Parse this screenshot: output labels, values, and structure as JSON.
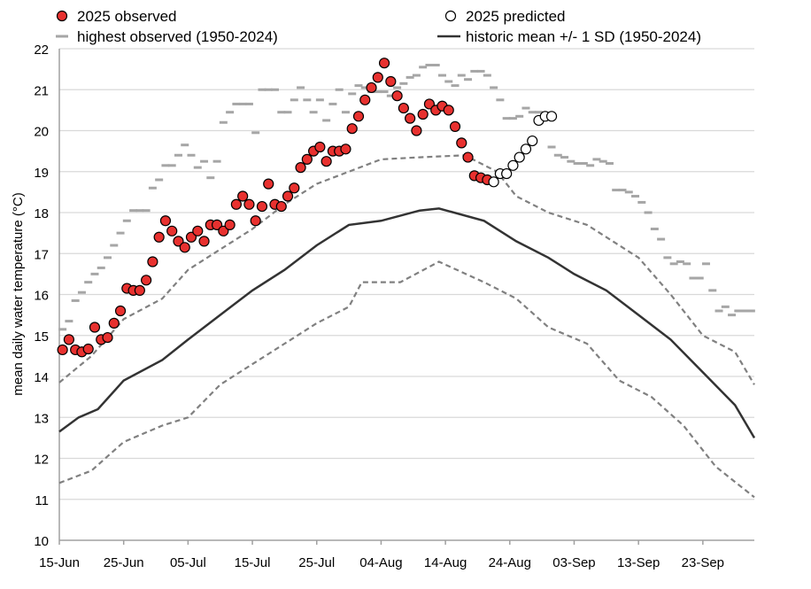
{
  "chart_data": {
    "type": "line",
    "title": "",
    "xlabel": "",
    "ylabel": "mean daily water temperature (°C)",
    "ylim": [
      10,
      22
    ],
    "xlim": [
      "15-Jun",
      "01-Oct"
    ],
    "grid": "horizontal",
    "legend_position": "top",
    "x_tick_labels": [
      "15-Jun",
      "25-Jun",
      "05-Jul",
      "15-Jul",
      "25-Jul",
      "04-Aug",
      "14-Aug",
      "24-Aug",
      "03-Sep",
      "13-Sep",
      "23-Sep"
    ],
    "y_tick_labels": [
      "10",
      "11",
      "12",
      "13",
      "14",
      "15",
      "16",
      "17",
      "18",
      "19",
      "20",
      "21",
      "22"
    ],
    "legend": {
      "observed": "2025 observed",
      "predicted": "2025 predicted",
      "highest": "highest observed (1950-2024)",
      "mean": "historic mean +/- 1 SD (1950-2024)"
    },
    "colors": {
      "observed": "#e8312f",
      "highest": "#a6a6a6",
      "mean": "#333333",
      "sd": "#808080",
      "grid": "#d9d9d9"
    },
    "observed_2025": {
      "start": "15-Jun",
      "values": [
        14.65,
        14.9,
        14.65,
        14.6,
        14.67,
        15.2,
        14.9,
        14.95,
        15.3,
        15.6,
        16.15,
        16.1,
        16.1,
        16.35,
        16.8,
        17.4,
        17.8,
        17.55,
        17.3,
        17.15,
        17.4,
        17.55,
        17.3,
        17.7,
        17.7,
        17.55,
        17.7,
        18.2,
        18.4,
        18.2,
        17.8,
        18.15,
        18.7,
        18.2,
        18.15,
        18.4,
        18.6,
        19.1,
        19.3,
        19.5,
        19.6,
        19.25,
        19.5,
        19.5,
        19.55,
        20.05,
        20.35,
        20.75,
        21.05,
        21.3,
        21.65,
        21.2,
        20.85,
        20.55,
        20.3,
        20.0,
        20.4,
        20.65,
        20.5,
        20.6,
        20.5,
        20.1,
        19.7,
        19.35,
        18.9,
        18.85,
        18.8
      ]
    },
    "predicted_2025": {
      "start": "21-Aug",
      "values": [
        18.75,
        18.95,
        18.95,
        19.15,
        19.35,
        19.55,
        19.75,
        20.25,
        20.35,
        20.35
      ]
    },
    "highest_observed": {
      "start": "15-Jun",
      "values": [
        15.15,
        15.35,
        15.85,
        16.05,
        16.3,
        16.5,
        16.65,
        16.9,
        17.2,
        17.5,
        17.8,
        18.05,
        18.05,
        18.05,
        18.6,
        18.8,
        19.15,
        19.15,
        19.4,
        19.65,
        19.4,
        19.1,
        19.25,
        18.85,
        19.25,
        20.2,
        20.45,
        20.65,
        20.65,
        20.65,
        19.95,
        21.0,
        21.0,
        21.0,
        20.45,
        20.45,
        20.75,
        21.05,
        20.75,
        20.45,
        20.75,
        20.25,
        20.65,
        21.0,
        20.45,
        20.9,
        21.1,
        21.05,
        20.95,
        20.95,
        20.95,
        20.85,
        21.05,
        21.15,
        21.3,
        21.35,
        21.55,
        21.6,
        21.6,
        21.35,
        21.2,
        21.1,
        21.35,
        21.25,
        21.45,
        21.45,
        21.35,
        21.05,
        20.75,
        20.3,
        20.3,
        20.35,
        20.55,
        20.45,
        20.45,
        20.4,
        19.6,
        19.4,
        19.35,
        19.25,
        19.2,
        19.2,
        19.15,
        19.3,
        19.25,
        19.2,
        18.55,
        18.55,
        18.5,
        18.4,
        18.25,
        18.0,
        17.6,
        17.35,
        16.9,
        16.75,
        16.8,
        16.75,
        16.4,
        16.4,
        16.75,
        16.1,
        15.6,
        15.7,
        15.5,
        15.6,
        15.6,
        15.6
      ]
    },
    "historic_mean": [
      [
        "15-Jun",
        12.65
      ],
      [
        "18-Jun",
        13.0
      ],
      [
        "21-Jun",
        13.2
      ],
      [
        "25-Jun",
        13.9
      ],
      [
        "01-Jul",
        14.4
      ],
      [
        "05-Jul",
        14.9
      ],
      [
        "10-Jul",
        15.5
      ],
      [
        "15-Jul",
        16.1
      ],
      [
        "20-Jul",
        16.6
      ],
      [
        "25-Jul",
        17.2
      ],
      [
        "30-Jul",
        17.7
      ],
      [
        "04-Aug",
        17.8
      ],
      [
        "10-Aug",
        18.05
      ],
      [
        "13-Aug",
        18.1
      ],
      [
        "20-Aug",
        17.8
      ],
      [
        "25-Aug",
        17.3
      ],
      [
        "30-Aug",
        16.9
      ],
      [
        "03-Sep",
        16.5
      ],
      [
        "08-Sep",
        16.1
      ],
      [
        "13-Sep",
        15.5
      ],
      [
        "18-Sep",
        14.9
      ],
      [
        "23-Sep",
        14.1
      ],
      [
        "28-Sep",
        13.3
      ],
      [
        "01-Oct",
        12.5
      ]
    ],
    "mean_plus_1sd": [
      [
        "15-Jun",
        13.85
      ],
      [
        "20-Jun",
        14.5
      ],
      [
        "25-Jun",
        15.4
      ],
      [
        "01-Jul",
        15.9
      ],
      [
        "05-Jul",
        16.6
      ],
      [
        "10-Jul",
        17.1
      ],
      [
        "15-Jul",
        17.6
      ],
      [
        "20-Jul",
        18.2
      ],
      [
        "25-Jul",
        18.7
      ],
      [
        "30-Jul",
        19.0
      ],
      [
        "04-Aug",
        19.3
      ],
      [
        "10-Aug",
        19.35
      ],
      [
        "17-Aug",
        19.4
      ],
      [
        "22-Aug",
        19.0
      ],
      [
        "25-Aug",
        18.4
      ],
      [
        "30-Aug",
        18.0
      ],
      [
        "05-Sep",
        17.7
      ],
      [
        "10-Sep",
        17.2
      ],
      [
        "13-Sep",
        16.9
      ],
      [
        "18-Sep",
        16.0
      ],
      [
        "23-Sep",
        15.0
      ],
      [
        "28-Sep",
        14.6
      ],
      [
        "01-Oct",
        13.8
      ]
    ],
    "mean_minus_1sd": [
      [
        "15-Jun",
        11.4
      ],
      [
        "20-Jun",
        11.7
      ],
      [
        "25-Jun",
        12.4
      ],
      [
        "01-Jul",
        12.8
      ],
      [
        "05-Jul",
        13.0
      ],
      [
        "10-Jul",
        13.8
      ],
      [
        "15-Jul",
        14.3
      ],
      [
        "20-Jul",
        14.8
      ],
      [
        "25-Jul",
        15.3
      ],
      [
        "30-Jul",
        15.7
      ],
      [
        "01-Aug",
        16.3
      ],
      [
        "07-Aug",
        16.3
      ],
      [
        "13-Aug",
        16.8
      ],
      [
        "20-Aug",
        16.3
      ],
      [
        "25-Aug",
        15.9
      ],
      [
        "30-Aug",
        15.2
      ],
      [
        "05-Sep",
        14.8
      ],
      [
        "10-Sep",
        13.9
      ],
      [
        "15-Sep",
        13.5
      ],
      [
        "20-Sep",
        12.8
      ],
      [
        "25-Sep",
        11.8
      ],
      [
        "01-Oct",
        11.05
      ]
    ]
  }
}
